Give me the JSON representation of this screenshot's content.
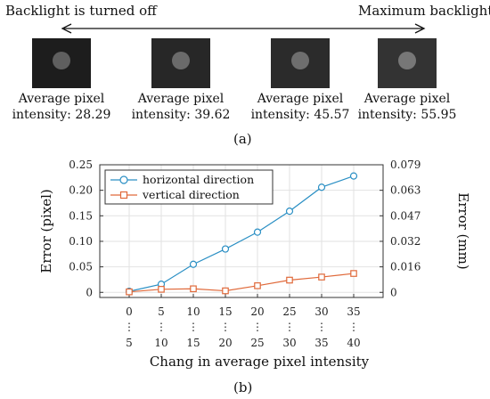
{
  "panel_a": {
    "left_label": "Backlight  is turned off",
    "right_label": "Maximum backlight",
    "thumbnails": [
      {
        "caption_line1": "Average pixel",
        "caption_line2": "intensity: 28.29",
        "bg": "#1d1d1d",
        "spot": "#5f5f5f"
      },
      {
        "caption_line1": "Average pixel",
        "caption_line2": "intensity: 39.62",
        "bg": "#272727",
        "spot": "#6a6a6a"
      },
      {
        "caption_line1": "Average pixel",
        "caption_line2": "intensity: 45.57",
        "bg": "#2b2b2b",
        "spot": "#6e6e6e"
      },
      {
        "caption_line1": "Average pixel",
        "caption_line2": "intensity: 55.95",
        "bg": "#333333",
        "spot": "#777777"
      }
    ],
    "label": "(a)"
  },
  "panel_b": {
    "label": "(b)"
  },
  "chart_data": {
    "type": "line",
    "categories": [
      "0\n⋮\n5",
      "5\n⋮\n10",
      "10\n⋮\n15",
      "15\n⋮\n20",
      "20\n⋮\n25",
      "25\n⋮\n30",
      "30\n⋮\n35",
      "35\n⋮\n40"
    ],
    "category_top": [
      "0",
      "5",
      "10",
      "15",
      "20",
      "25",
      "30",
      "35"
    ],
    "category_bottom": [
      "5",
      "10",
      "15",
      "20",
      "25",
      "30",
      "35",
      "40"
    ],
    "series": [
      {
        "name": "horizontal direction",
        "values": [
          0.002,
          0.016,
          0.055,
          0.085,
          0.118,
          0.159,
          0.206,
          0.228
        ],
        "color": "#2a8fc4",
        "marker": "circle"
      },
      {
        "name": "vertical direction",
        "values": [
          0.001,
          0.006,
          0.007,
          0.003,
          0.013,
          0.024,
          0.03,
          0.037
        ],
        "color": "#e0693a",
        "marker": "square"
      }
    ],
    "xlabel": "Chang in average pixel  intensity",
    "ylabel": "Error (pixel)",
    "ylabel_right": "Error (mm)",
    "ylim": [
      -0.01,
      0.25
    ],
    "yticks": [
      0,
      0.05,
      0.1,
      0.15,
      0.2,
      0.25
    ],
    "ytick_labels": [
      "0",
      "0.05",
      "0.10",
      "0.15",
      "0.20",
      "0.25"
    ],
    "yticks_right": [
      0,
      0.016,
      0.032,
      0.047,
      0.063,
      0.079
    ],
    "ytick_labels_right": [
      "0",
      "0.016",
      "0.032",
      "0.047",
      "0.063",
      "0.079"
    ],
    "grid": true,
    "legend_position": "top-left"
  }
}
